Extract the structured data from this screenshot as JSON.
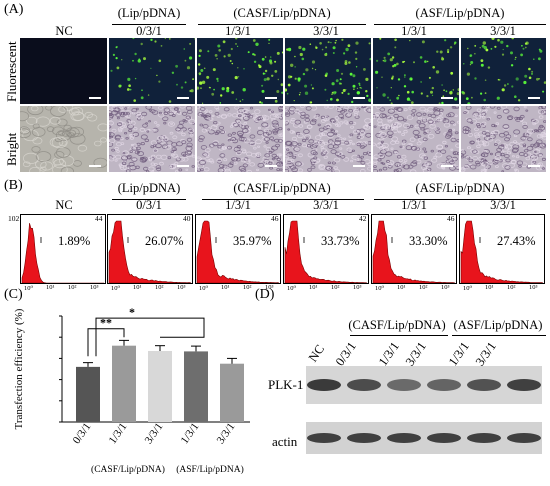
{
  "panel_a": {
    "letter": "(A)",
    "groups": [
      "(Lip/pDNA)",
      "(CASF/Lip/pDNA)",
      "(ASF/Lip/pDNA)"
    ],
    "conditions": [
      "NC",
      "0/3/1",
      "1/3/1",
      "3/3/1",
      "1/3/1",
      "3/3/1"
    ],
    "row_labels": [
      "Fluorescent",
      "Bright"
    ],
    "fluorescent_density": [
      0,
      0.35,
      0.6,
      0.7,
      0.55,
      0.5
    ]
  },
  "panel_b": {
    "letter": "(B)",
    "groups": [
      "(Lip/pDNA)",
      "(CASF/Lip/pDNA)",
      "(ASF/Lip/pDNA)"
    ],
    "conditions": [
      "NC",
      "0/3/1",
      "1/3/1",
      "3/3/1",
      "1/3/1",
      "3/3/1"
    ],
    "percentages": [
      "1.89%",
      "26.07%",
      "35.97%",
      "33.73%",
      "33.30%",
      "27.43%"
    ],
    "y_max_labels": [
      "102",
      "44",
      "40",
      "46",
      "42",
      "46"
    ],
    "x_tick_labels": [
      "10⁰",
      "10¹",
      "10²",
      "10³"
    ]
  },
  "panel_c": {
    "letter": "(C)",
    "chart_data": {
      "type": "bar",
      "ylabel": "Transfection efficiency (%)",
      "categories": [
        "0/3/1",
        "1/3/1",
        "3/3/1",
        "1/3/1",
        "3/3/1"
      ],
      "values": [
        26,
        36,
        33.5,
        33.3,
        27.5
      ],
      "errors": [
        2,
        2.5,
        2.5,
        2.5,
        2.5
      ],
      "colors": [
        "#555555",
        "#9a9a9a",
        "#d8d8d8",
        "#6e6e6e",
        "#9a9a9a"
      ],
      "ylim": [
        0,
        50
      ],
      "group_labels": [
        "(CASF/Lip/pDNA)",
        "(ASF/Lip/pDNA)"
      ],
      "significance": [
        "**",
        "*"
      ]
    }
  },
  "panel_d": {
    "letter": "(D)",
    "groups": [
      "(CASF/Lip/pDNA)",
      "(ASF/Lip/pDNA)"
    ],
    "lanes": [
      "NC",
      "0/3/1",
      "1/3/1",
      "3/3/1",
      "1/3/1",
      "3/3/1"
    ],
    "bands": [
      "PLK-1",
      "actin"
    ],
    "plk1_intensity": [
      0.85,
      0.7,
      0.45,
      0.5,
      0.65,
      0.8
    ],
    "actin_intensity": [
      0.8,
      0.8,
      0.8,
      0.8,
      0.8,
      0.8
    ]
  }
}
